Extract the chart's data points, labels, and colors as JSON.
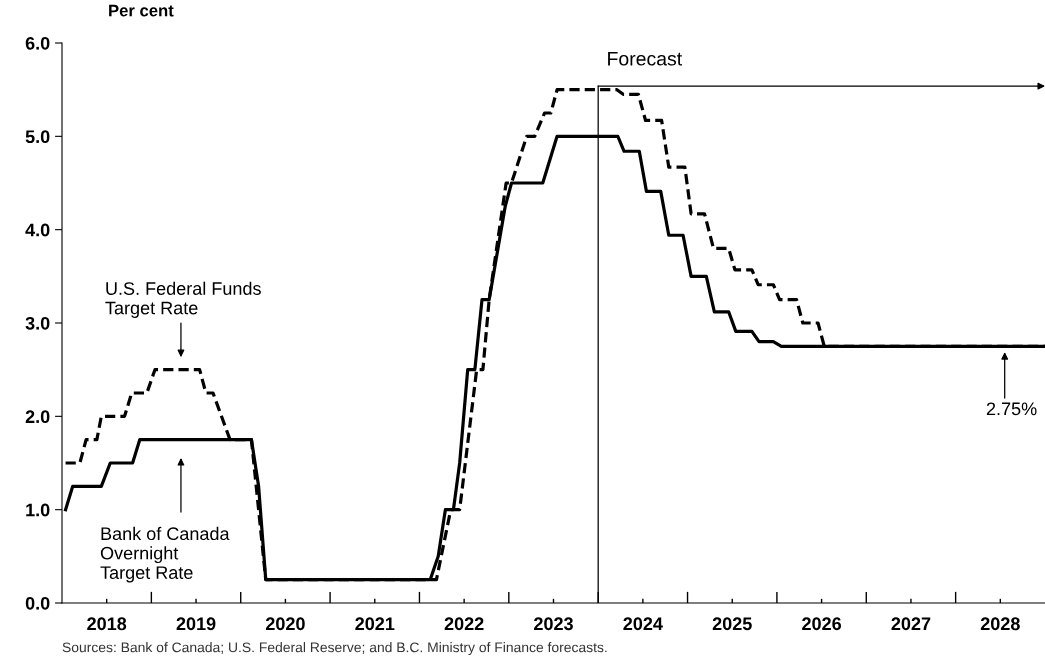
{
  "chart_data": {
    "type": "line",
    "ylabel": "Per cent",
    "xlim": [
      2018,
      2029
    ],
    "ylim": [
      0,
      6
    ],
    "yticks": [
      {
        "value": 0,
        "label": "0.0"
      },
      {
        "value": 1,
        "label": "1.0"
      },
      {
        "value": 2,
        "label": "2.0"
      },
      {
        "value": 3,
        "label": "3.0"
      },
      {
        "value": 4,
        "label": "4.0"
      },
      {
        "value": 5,
        "label": "5.0"
      },
      {
        "value": 6,
        "label": "6.0"
      }
    ],
    "xticks": [
      {
        "value": 2018.5,
        "label": "2018"
      },
      {
        "value": 2019,
        "label": null
      },
      {
        "value": 2019.5,
        "label": "2019"
      },
      {
        "value": 2020,
        "label": null
      },
      {
        "value": 2020.5,
        "label": "2020"
      },
      {
        "value": 2021,
        "label": null
      },
      {
        "value": 2021.5,
        "label": "2021"
      },
      {
        "value": 2022,
        "label": null
      },
      {
        "value": 2022.5,
        "label": "2022"
      },
      {
        "value": 2023,
        "label": null
      },
      {
        "value": 2023.5,
        "label": "2023"
      },
      {
        "value": 2024,
        "label": null
      },
      {
        "value": 2024.5,
        "label": "2024"
      },
      {
        "value": 2025,
        "label": null
      },
      {
        "value": 2025.5,
        "label": "2025"
      },
      {
        "value": 2026,
        "label": null
      },
      {
        "value": 2026.5,
        "label": "2026"
      },
      {
        "value": 2027,
        "label": null
      },
      {
        "value": 2027.5,
        "label": "2027"
      },
      {
        "value": 2028,
        "label": null
      },
      {
        "value": 2028.5,
        "label": "2028"
      }
    ],
    "grid": false,
    "marker": "none",
    "series": [
      {
        "color": "#000000",
        "line_style": "dashed",
        "x": [
          2018.04,
          2018.2,
          2018.27,
          2018.39,
          2018.44,
          2018.7,
          2018.78,
          2018.95,
          2019.04,
          2019.54,
          2019.61,
          2019.69,
          2019.88,
          2020.12,
          2020.28,
          2022.19,
          2022.35,
          2022.45,
          2022.64,
          2022.71,
          2022.78,
          2022.97,
          2023.03,
          2023.2,
          2023.29,
          2023.4,
          2023.47,
          2023.54,
          2024.21,
          2024.28,
          2024.45,
          2024.53,
          2024.71,
          2024.79,
          2024.97,
          2025.04,
          2025.19,
          2025.29,
          2025.46,
          2025.53,
          2025.72,
          2025.79,
          2025.96,
          2026.03,
          2026.22,
          2026.29,
          2026.46,
          2026.53,
          2029
        ],
        "values": [
          1.5,
          1.5,
          1.75,
          1.75,
          2.0,
          2.0,
          2.25,
          2.25,
          2.5,
          2.5,
          2.25,
          2.25,
          1.75,
          1.75,
          0.25,
          0.25,
          1.0,
          1.0,
          2.5,
          2.5,
          3.25,
          4.5,
          4.5,
          5.0,
          5.0,
          5.25,
          5.25,
          5.5,
          5.5,
          5.45,
          5.45,
          5.17,
          5.17,
          4.67,
          4.67,
          4.17,
          4.17,
          3.8,
          3.8,
          3.57,
          3.57,
          3.41,
          3.41,
          3.25,
          3.25,
          3.0,
          3.0,
          2.75,
          2.75
        ]
      },
      {
        "color": "#000000",
        "line_style": "solid",
        "x": [
          2018.04,
          2018.12,
          2018.44,
          2018.54,
          2018.79,
          2018.87,
          2020.12,
          2020.2,
          2020.28,
          2022.12,
          2022.21,
          2022.29,
          2022.38,
          2022.45,
          2022.54,
          2022.62,
          2022.7,
          2022.78,
          2022.96,
          2023.03,
          2023.38,
          2023.54,
          2024.22,
          2024.29,
          2024.46,
          2024.54,
          2024.7,
          2024.79,
          2024.95,
          2025.04,
          2025.21,
          2025.3,
          2025.46,
          2025.54,
          2025.72,
          2025.8,
          2025.96,
          2026.05,
          2029
        ],
        "values": [
          1.0,
          1.25,
          1.25,
          1.5,
          1.5,
          1.75,
          1.75,
          1.25,
          0.25,
          0.25,
          0.5,
          1.0,
          1.0,
          1.5,
          2.5,
          2.5,
          3.25,
          3.25,
          4.25,
          4.5,
          4.5,
          5.0,
          5.0,
          4.84,
          4.84,
          4.41,
          4.41,
          3.94,
          3.94,
          3.5,
          3.5,
          3.12,
          3.12,
          2.91,
          2.91,
          2.8,
          2.8,
          2.75,
          2.75
        ]
      }
    ],
    "ref_lines": [
      {
        "axis": "x",
        "value": 2024,
        "label": "Forecast",
        "color": "#000000"
      }
    ],
    "annotations": [
      "U.S. Federal Funds\nTarget Rate",
      "Bank of Canada\nOvernight\nTarget Rate",
      "2.75%",
      "Sources: Bank of Canada; U.S. Federal Reserve; and B.C. Ministry of Finance forecasts."
    ]
  }
}
